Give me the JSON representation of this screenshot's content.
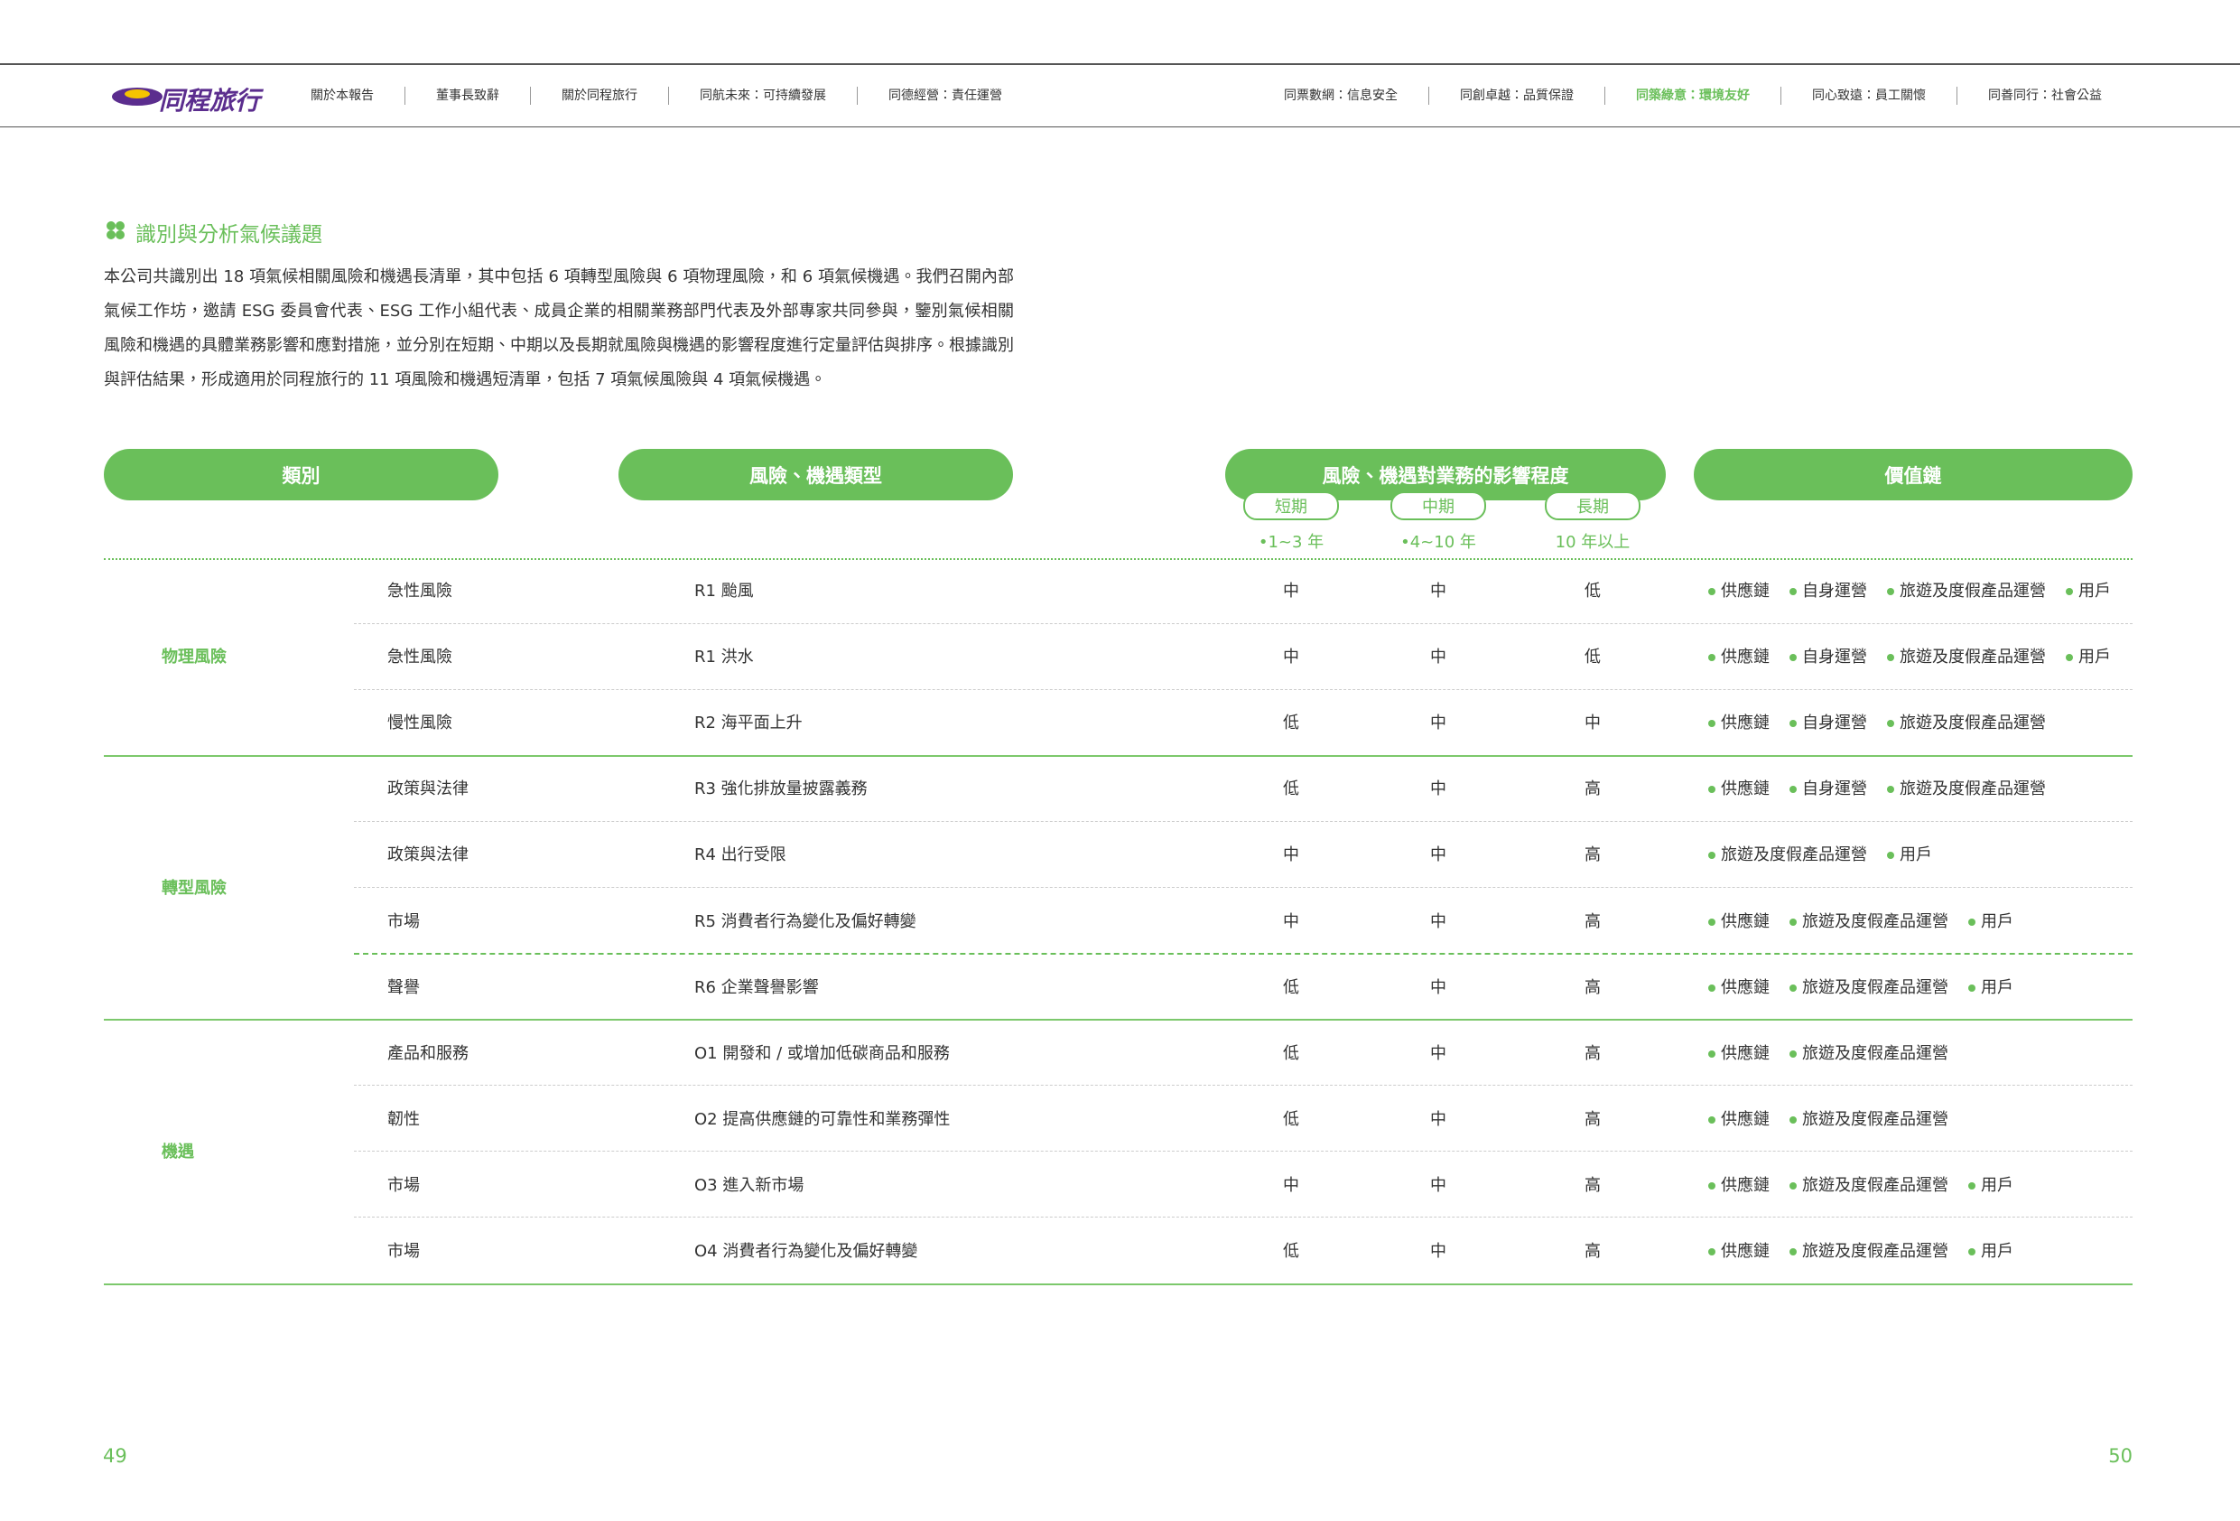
{
  "header": {
    "logo": "同程旅行",
    "nav_left": [
      "關於本報告",
      "董事長致辭",
      "關於同程旅行",
      "同航未來：可持續發展",
      "同德經營：責任運營"
    ],
    "nav_right": [
      "同票數網：信息安全",
      "同創卓越：品質保證",
      "同築綠意：環境友好",
      "同心致遠：員工關懷",
      "同善同行：社會公益"
    ]
  },
  "section": {
    "title": "識別與分析氣候議題",
    "paragraph": "本公司共識別出 18 項氣候相關風險和機遇長清單，其中包括 6 項轉型風險與 6 項物理風險，和 6 項氣候機遇。我們召開內部氣候工作坊，邀請 ESG 委員會代表、ESG 工作小組代表、成員企業的相關業務部門代表及外部專家共同參與，鑒別氣候相關風險和機遇的具體業務影響和應對措施，並分別在短期、中期以及長期就風險與機遇的影響程度進行定量評估與排序。根據識別與評估結果，形成適用於同程旅行的 11 項風險和機遇短清單，包括 7 項氣候風險與 4 項氣候機遇。"
  },
  "table": {
    "headers": [
      "類別",
      "風險、機遇類型",
      "風險、機遇對業務的影響程度",
      "價值鏈"
    ],
    "terms": [
      {
        "label": "短期",
        "range": "•1~3 年"
      },
      {
        "label": "中期",
        "range": "•4~10 年"
      },
      {
        "label": "長期",
        "range": "10 年以上"
      }
    ],
    "groups": [
      {
        "name": "物理風險",
        "rows": [
          {
            "type": "急性風險",
            "item": "R1 颱風",
            "impact": [
              "中",
              "中",
              "低"
            ],
            "chain": [
              "供應鏈",
              "自身運營",
              "旅遊及度假產品運營",
              "用戶"
            ]
          },
          {
            "type": "急性風險",
            "item": "R1 洪水",
            "impact": [
              "中",
              "中",
              "低"
            ],
            "chain": [
              "供應鏈",
              "自身運營",
              "旅遊及度假產品運營",
              "用戶"
            ]
          },
          {
            "type": "慢性風險",
            "item": "R2 海平面上升",
            "impact": [
              "低",
              "中",
              "中"
            ],
            "chain": [
              "供應鏈",
              "自身運營",
              "旅遊及度假產品運營"
            ]
          }
        ]
      },
      {
        "name": "轉型風險",
        "rows": [
          {
            "type": "政策與法律",
            "item": "R3 強化排放量披露義務",
            "impact": [
              "低",
              "中",
              "高"
            ],
            "chain": [
              "供應鏈",
              "自身運營",
              "旅遊及度假產品運營"
            ]
          },
          {
            "type": "政策與法律",
            "item": "R4 出行受限",
            "impact": [
              "中",
              "中",
              "高"
            ],
            "chain": [
              "旅遊及度假產品運營",
              "用戶"
            ]
          },
          {
            "type": "市場",
            "item": "R5 消費者行為變化及偏好轉變",
            "impact": [
              "中",
              "中",
              "高"
            ],
            "chain": [
              "供應鏈",
              "旅遊及度假產品運營",
              "用戶"
            ]
          },
          {
            "type": "聲譽",
            "item": "R6 企業聲譽影響",
            "impact": [
              "低",
              "中",
              "高"
            ],
            "chain": [
              "供應鏈",
              "旅遊及度假產品運營",
              "用戶"
            ]
          }
        ]
      },
      {
        "name": "機遇",
        "rows": [
          {
            "type": "產品和服務",
            "item": "O1 開發和 / 或增加低碳商品和服務",
            "impact": [
              "低",
              "中",
              "高"
            ],
            "chain": [
              "供應鏈",
              "旅遊及度假產品運營"
            ]
          },
          {
            "type": "韌性",
            "item": "O2 提高供應鏈的可靠性和業務彈性",
            "impact": [
              "低",
              "中",
              "高"
            ],
            "chain": [
              "供應鏈",
              "旅遊及度假產品運營"
            ]
          },
          {
            "type": "市場",
            "item": "O3 進入新市場",
            "impact": [
              "中",
              "中",
              "高"
            ],
            "chain": [
              "供應鏈",
              "旅遊及度假產品運營",
              "用戶"
            ]
          },
          {
            "type": "市場",
            "item": "O4 消費者行為變化及偏好轉變",
            "impact": [
              "低",
              "中",
              "高"
            ],
            "chain": [
              "供應鏈",
              "旅遊及度假產品運營",
              "用戶"
            ]
          }
        ]
      }
    ]
  },
  "footer": {
    "page_left": "49",
    "page_right": "50"
  }
}
